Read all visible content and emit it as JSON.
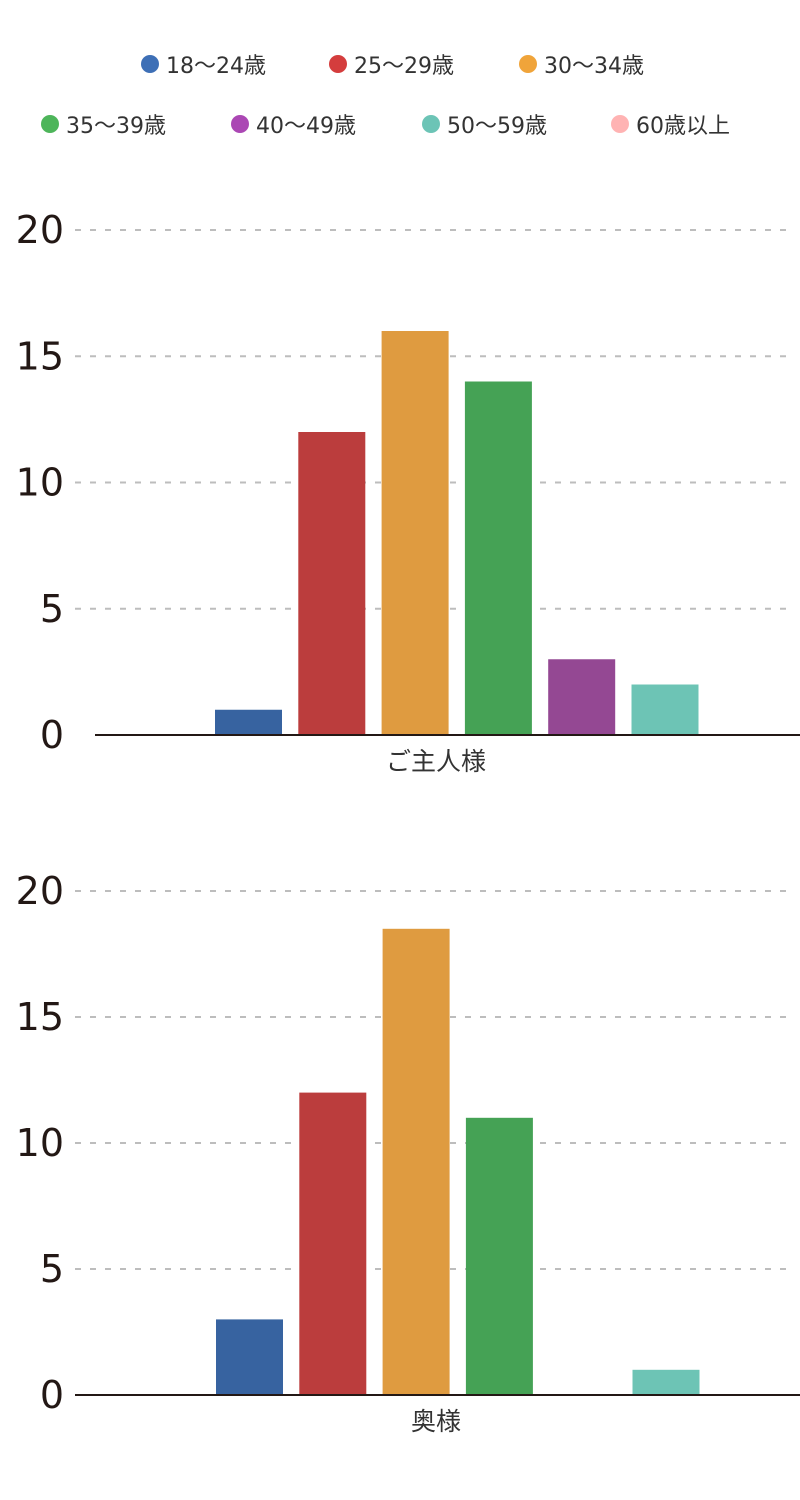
{
  "legend": [
    {
      "label": "18〜24歳",
      "color": "#3d6fb6"
    },
    {
      "label": "25〜29歳",
      "color": "#d43d3d"
    },
    {
      "label": "30〜34歳",
      "color": "#f0a43a"
    },
    {
      "label": "35〜39歳",
      "color": "#4db55a"
    },
    {
      "label": "40〜49歳",
      "color": "#ab47b4"
    },
    {
      "label": "50〜59歳",
      "color": "#6cc4b6"
    },
    {
      "label": "60歳以上",
      "color": "#ffb3b3"
    }
  ],
  "chart_data": [
    {
      "type": "bar",
      "categories": [
        "ご主人様"
      ],
      "xlabel": "ご主人様",
      "ylim": [
        0,
        20
      ],
      "yticks": [
        0,
        5,
        10,
        15,
        20
      ],
      "grid": true,
      "legend_position": "top",
      "series": [
        {
          "name": "18〜24歳",
          "values": [
            1
          ],
          "color": "#3763a0"
        },
        {
          "name": "25〜29歳",
          "values": [
            12
          ],
          "color": "#bb3d3d"
        },
        {
          "name": "30〜34歳",
          "values": [
            16
          ],
          "color": "#df9b40"
        },
        {
          "name": "35〜39歳",
          "values": [
            14
          ],
          "color": "#45a255"
        },
        {
          "name": "40〜49歳",
          "values": [
            3
          ],
          "color": "#944893"
        },
        {
          "name": "50〜59歳",
          "values": [
            2
          ],
          "color": "#6dc4b5"
        },
        {
          "name": "60歳以上",
          "values": [
            0
          ],
          "color": "#ffb3b3"
        }
      ]
    },
    {
      "type": "bar",
      "categories": [
        "奥様"
      ],
      "xlabel": "奥様",
      "ylim": [
        0,
        20
      ],
      "yticks": [
        0,
        5,
        10,
        15,
        20
      ],
      "grid": true,
      "legend_position": "top",
      "series": [
        {
          "name": "18〜24歳",
          "values": [
            3
          ],
          "color": "#3763a0"
        },
        {
          "name": "25〜29歳",
          "values": [
            12
          ],
          "color": "#bb3d3d"
        },
        {
          "name": "30〜34歳",
          "values": [
            18.5
          ],
          "color": "#df9b40"
        },
        {
          "name": "35〜39歳",
          "values": [
            11
          ],
          "color": "#45a255"
        },
        {
          "name": "40〜49歳",
          "values": [
            0
          ],
          "color": "#944893"
        },
        {
          "name": "50〜59歳",
          "values": [
            1
          ],
          "color": "#6dc4b5"
        },
        {
          "name": "60歳以上",
          "values": [
            0
          ],
          "color": "#ffb3b3"
        }
      ]
    }
  ]
}
